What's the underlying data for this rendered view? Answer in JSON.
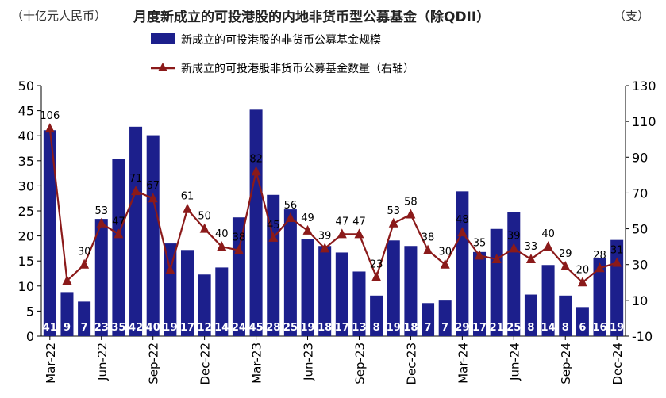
{
  "header": {
    "left_unit": "（十亿元人民币）",
    "title": "月度新成立的可投港股的内地非货币型公募基金（除QDII）",
    "right_unit": "（支）"
  },
  "colors": {
    "bar": "#1c1f8c",
    "line": "#8b1a1a",
    "bar_label": "#ffffff",
    "line_label": "#000000"
  },
  "chart_data": {
    "type": "bar",
    "x": [
      "Mar-22",
      "Apr-22",
      "May-22",
      "Jun-22",
      "Jul-22",
      "Aug-22",
      "Sep-22",
      "Oct-22",
      "Nov-22",
      "Dec-22",
      "Jan-23",
      "Feb-23",
      "Mar-23",
      "Apr-23",
      "May-23",
      "Jun-23",
      "Jul-23",
      "Aug-23",
      "Sep-23",
      "Oct-23",
      "Nov-23",
      "Dec-23",
      "Jan-24",
      "Feb-24",
      "Mar-24",
      "Apr-24",
      "May-24",
      "Jun-24",
      "Jul-24",
      "Aug-24",
      "Sep-24",
      "Oct-24",
      "Nov-24",
      "Dec-24"
    ],
    "tick_labels": [
      "Mar-22",
      "Jun-22",
      "Sep-22",
      "Dec-22",
      "Mar-23",
      "Jun-23",
      "Sep-23",
      "Dec-23",
      "Mar-24",
      "Jun-24",
      "Sep-24",
      "Dec-24"
    ],
    "series": [
      {
        "name": "新成立的可投港股的非货币公募基金规模",
        "kind": "bar",
        "axis": "left",
        "values": [
          41.1,
          8.8,
          6.9,
          23.4,
          35.3,
          41.8,
          40.1,
          18.5,
          17.2,
          12.3,
          13.7,
          23.7,
          45.2,
          28.2,
          25.3,
          19.3,
          18.0,
          16.7,
          12.9,
          8.1,
          19.1,
          18.0,
          6.6,
          7.1,
          28.9,
          16.8,
          21.4,
          24.8,
          8.3,
          14.2,
          8.1,
          5.8,
          15.6,
          19.2
        ],
        "labels": [
          "41",
          "9",
          "7",
          "23",
          "35",
          "42",
          "40",
          "19",
          "17",
          "12",
          "14",
          "24",
          "45",
          "28",
          "25",
          "19",
          "18",
          "17",
          "13",
          "8",
          "19",
          "18",
          "7",
          "7",
          "29",
          "17",
          "21",
          "25",
          "8",
          "14",
          "8",
          "6",
          "16",
          "19"
        ]
      },
      {
        "name": "新成立的可投港股非货币公募基金数量（右轴）",
        "kind": "line",
        "axis": "right",
        "values": [
          106,
          21,
          30,
          53,
          47,
          71,
          67,
          27,
          61,
          50,
          40,
          38,
          82,
          45,
          56,
          49,
          39,
          47,
          47,
          23,
          53,
          58,
          38,
          30,
          48,
          35,
          33,
          39,
          33,
          40,
          29,
          20,
          28,
          31
        ],
        "labels": [
          "106",
          "",
          "30",
          "53",
          "47",
          "71",
          "67",
          "",
          "61",
          "50",
          "40",
          "38",
          "82",
          "45",
          "56",
          "49",
          "39",
          "47",
          "47",
          "23",
          "53",
          "58",
          "38",
          "30",
          "48",
          "35",
          "",
          "39",
          "33",
          "40",
          "29",
          "20",
          "28",
          "31"
        ]
      }
    ],
    "y_left": {
      "min": 0,
      "max": 50,
      "step": 5
    },
    "y_right": {
      "min": -10,
      "max": 130,
      "step": 20
    },
    "grid": false,
    "legend_position": "top"
  }
}
